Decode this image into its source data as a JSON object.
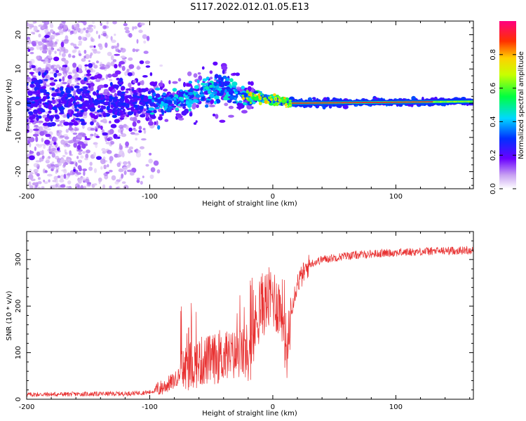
{
  "title": "S117.2022.012.01.05.E13",
  "chart_data": [
    {
      "type": "heatmap",
      "xlabel": "Height of straight line (km)",
      "ylabel": "Frequency (Hz)",
      "xlim": [
        -200,
        163
      ],
      "ylim": [
        -25,
        24
      ],
      "xticks": [
        -200,
        -100,
        0,
        100
      ],
      "yticks": [
        -20,
        -10,
        0,
        10,
        20
      ],
      "colorbar": {
        "label": "Normalized spectral amplitude",
        "range": [
          0,
          1
        ],
        "ticks": [
          0.0,
          0.2,
          0.4,
          0.6,
          0.8
        ]
      },
      "band_profile": [
        {
          "x": -200,
          "center": 0,
          "halfwidth": 6
        },
        {
          "x": -120,
          "center": 0.5,
          "halfwidth": 4
        },
        {
          "x": -80,
          "center": 0.5,
          "halfwidth": 2
        },
        {
          "x": -60,
          "center": 3,
          "halfwidth": 3
        },
        {
          "x": -40,
          "center": 5,
          "halfwidth": 3
        },
        {
          "x": -25,
          "center": 2,
          "halfwidth": 2
        },
        {
          "x": -10,
          "center": 1.5,
          "halfwidth": 1
        },
        {
          "x": 0,
          "center": 1,
          "halfwidth": 1
        },
        {
          "x": 15,
          "center": 0,
          "halfwidth": 0.8
        },
        {
          "x": 163,
          "center": 0.5,
          "halfwidth": 0.6
        }
      ]
    },
    {
      "type": "line",
      "xlabel": "Height of straight line (km)",
      "ylabel": "SNR (10 * v/v)",
      "xlim": [
        -200,
        163
      ],
      "ylim": [
        0,
        360
      ],
      "xticks": [
        -200,
        -100,
        0,
        100
      ],
      "yticks": [
        0,
        100,
        200,
        300
      ],
      "color": "#e83030",
      "series": [
        {
          "profile": [
            [
              -200,
              10
            ],
            [
              -120,
              12
            ],
            [
              -100,
              15
            ],
            [
              -90,
              25
            ],
            [
              -80,
              40
            ],
            [
              -70,
              70
            ],
            [
              -60,
              80
            ],
            [
              -50,
              85
            ],
            [
              -40,
              90
            ],
            [
              -30,
              95
            ],
            [
              -25,
              100
            ],
            [
              -18,
              80
            ],
            [
              -15,
              150
            ],
            [
              -10,
              200
            ],
            [
              -5,
              210
            ],
            [
              0,
              220
            ],
            [
              5,
              200
            ],
            [
              8,
              190
            ],
            [
              10,
              130
            ],
            [
              12,
              100
            ],
            [
              15,
              200
            ],
            [
              20,
              250
            ],
            [
              30,
              290
            ],
            [
              40,
              300
            ],
            [
              60,
              308
            ],
            [
              80,
              312
            ],
            [
              100,
              315
            ],
            [
              130,
              318
            ],
            [
              163,
              320
            ]
          ]
        }
      ]
    }
  ]
}
